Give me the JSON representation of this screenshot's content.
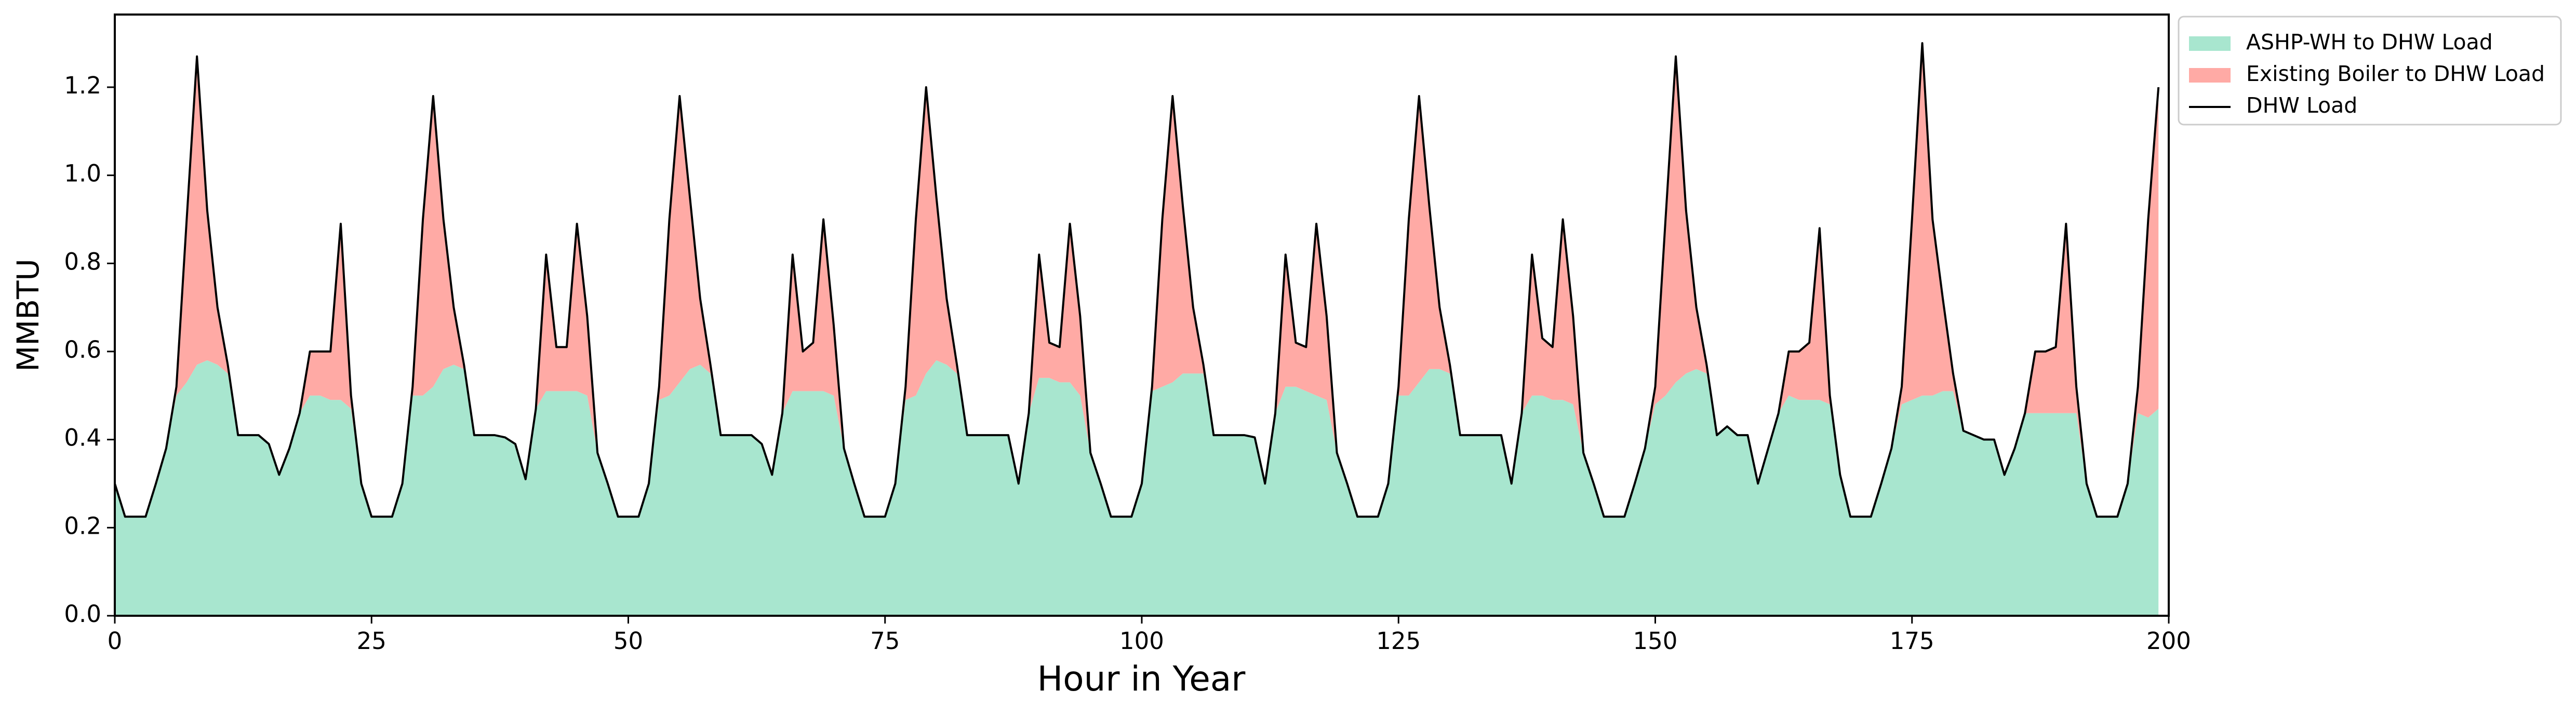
{
  "chart_data": {
    "type": "stacked_area",
    "xlabel": "Hour in Year",
    "ylabel": "MMBTU",
    "x": [
      0,
      1,
      2,
      3,
      4,
      5,
      6,
      7,
      8,
      9,
      10,
      11,
      12,
      13,
      14,
      15,
      16,
      17,
      18,
      19,
      20,
      21,
      22,
      23,
      24,
      25,
      26,
      27,
      28,
      29,
      30,
      31,
      32,
      33,
      34,
      35,
      36,
      37,
      38,
      39,
      40,
      41,
      42,
      43,
      44,
      45,
      46,
      47,
      48,
      49,
      50,
      51,
      52,
      53,
      54,
      55,
      56,
      57,
      58,
      59,
      60,
      61,
      62,
      63,
      64,
      65,
      66,
      67,
      68,
      69,
      70,
      71,
      72,
      73,
      74,
      75,
      76,
      77,
      78,
      79,
      80,
      81,
      82,
      83,
      84,
      85,
      86,
      87,
      88,
      89,
      90,
      91,
      92,
      93,
      94,
      95,
      96,
      97,
      98,
      99,
      100,
      101,
      102,
      103,
      104,
      105,
      106,
      107,
      108,
      109,
      110,
      111,
      112,
      113,
      114,
      115,
      116,
      117,
      118,
      119,
      120,
      121,
      122,
      123,
      124,
      125,
      126,
      127,
      128,
      129,
      130,
      131,
      132,
      133,
      134,
      135,
      136,
      137,
      138,
      139,
      140,
      141,
      142,
      143,
      144,
      145,
      146,
      147,
      148,
      149,
      150,
      151,
      152,
      153,
      154,
      155,
      156,
      157,
      158,
      159,
      160,
      161,
      162,
      163,
      164,
      165,
      166,
      167,
      168,
      169,
      170,
      171,
      172,
      173,
      174,
      175,
      176,
      177,
      178,
      179,
      180,
      181,
      182,
      183,
      184,
      185,
      186,
      187,
      188,
      189,
      190,
      191,
      192,
      193,
      194,
      195,
      196,
      197,
      198,
      199
    ],
    "series": [
      {
        "name": "ASHP-WH to DHW Load",
        "color": "#a8e6cf",
        "kind": "area",
        "values": [
          0.3,
          0.225,
          0.225,
          0.225,
          0.3,
          0.38,
          0.5,
          0.53,
          0.57,
          0.58,
          0.57,
          0.55,
          0.41,
          0.41,
          0.41,
          0.39,
          0.32,
          0.38,
          0.46,
          0.5,
          0.5,
          0.49,
          0.49,
          0.47,
          0.3,
          0.225,
          0.225,
          0.225,
          0.3,
          0.5,
          0.5,
          0.52,
          0.56,
          0.57,
          0.56,
          0.41,
          0.41,
          0.41,
          0.405,
          0.39,
          0.31,
          0.47,
          0.51,
          0.51,
          0.51,
          0.51,
          0.5,
          0.37,
          0.3,
          0.225,
          0.225,
          0.225,
          0.3,
          0.49,
          0.5,
          0.53,
          0.56,
          0.57,
          0.55,
          0.41,
          0.41,
          0.41,
          0.41,
          0.39,
          0.32,
          0.46,
          0.51,
          0.51,
          0.51,
          0.51,
          0.5,
          0.38,
          0.3,
          0.225,
          0.225,
          0.225,
          0.3,
          0.49,
          0.5,
          0.55,
          0.58,
          0.57,
          0.55,
          0.41,
          0.41,
          0.41,
          0.41,
          0.41,
          0.3,
          0.46,
          0.54,
          0.54,
          0.53,
          0.53,
          0.5,
          0.37,
          0.3,
          0.225,
          0.225,
          0.225,
          0.3,
          0.51,
          0.52,
          0.53,
          0.55,
          0.55,
          0.55,
          0.41,
          0.41,
          0.41,
          0.41,
          0.405,
          0.3,
          0.46,
          0.52,
          0.52,
          0.51,
          0.5,
          0.49,
          0.37,
          0.3,
          0.225,
          0.225,
          0.225,
          0.3,
          0.5,
          0.5,
          0.53,
          0.56,
          0.56,
          0.55,
          0.41,
          0.41,
          0.41,
          0.41,
          0.41,
          0.3,
          0.46,
          0.5,
          0.5,
          0.49,
          0.49,
          0.48,
          0.37,
          0.3,
          0.225,
          0.225,
          0.225,
          0.3,
          0.38,
          0.48,
          0.5,
          0.53,
          0.55,
          0.56,
          0.55,
          0.41,
          0.43,
          0.41,
          0.41,
          0.3,
          0.38,
          0.46,
          0.5,
          0.49,
          0.49,
          0.49,
          0.48,
          0.32,
          0.225,
          0.225,
          0.225,
          0.3,
          0.38,
          0.48,
          0.49,
          0.5,
          0.5,
          0.51,
          0.51,
          0.42,
          0.41,
          0.4,
          0.4,
          0.32,
          0.38,
          0.46,
          0.46,
          0.46,
          0.46,
          0.46,
          0.46,
          0.3,
          0.225,
          0.225,
          0.225,
          0.3,
          0.46,
          0.45,
          0.47
        ]
      },
      {
        "name": "Existing Boiler to DHW Load",
        "color": "#ffaaa5",
        "kind": "area",
        "values": [
          0,
          0,
          0,
          0,
          0,
          0,
          0.02,
          0.37,
          0.7,
          0.34,
          0.13,
          0.02,
          0,
          0,
          0,
          0,
          0,
          0,
          0,
          0.1,
          0.1,
          0.11,
          0.4,
          0.03,
          0,
          0,
          0,
          0,
          0,
          0.02,
          0.4,
          0.66,
          0.34,
          0.13,
          0.01,
          0,
          0,
          0,
          0,
          0,
          0,
          0,
          0.31,
          0.1,
          0.1,
          0.38,
          0.18,
          0,
          0,
          0,
          0,
          0,
          0,
          0.03,
          0.4,
          0.65,
          0.39,
          0.15,
          0.02,
          0,
          0,
          0,
          0,
          0,
          0,
          0,
          0.31,
          0.09,
          0.11,
          0.39,
          0.16,
          0,
          0,
          0,
          0,
          0,
          0,
          0.03,
          0.4,
          0.65,
          0.37,
          0.15,
          0.02,
          0,
          0,
          0,
          0,
          0,
          0,
          0,
          0.28,
          0.08,
          0.08,
          0.36,
          0.18,
          0,
          0,
          0,
          0,
          0,
          0,
          0.01,
          0.38,
          0.65,
          0.38,
          0.15,
          0.02,
          0,
          0,
          0,
          0,
          0,
          0,
          0,
          0.3,
          0.1,
          0.1,
          0.39,
          0.19,
          0,
          0,
          0,
          0,
          0,
          0,
          0.02,
          0.4,
          0.65,
          0.37,
          0.14,
          0.02,
          0,
          0,
          0,
          0,
          0,
          0,
          0,
          0.32,
          0.13,
          0.12,
          0.41,
          0.2,
          0,
          0,
          0,
          0,
          0,
          0,
          0,
          0.04,
          0.4,
          0.74,
          0.37,
          0.14,
          0.02,
          0,
          0,
          0,
          0,
          0,
          0,
          0,
          0.1,
          0.11,
          0.13,
          0.39,
          0.02,
          0,
          0,
          0,
          0,
          0,
          0,
          0.04,
          0.41,
          0.8,
          0.4,
          0.21,
          0.04,
          0,
          0,
          0,
          0,
          0,
          0,
          0,
          0.14,
          0.14,
          0.15,
          0.43,
          0.06,
          0,
          0,
          0,
          0,
          0,
          0.06,
          0.45,
          0.73
        ]
      },
      {
        "name": "DHW Load",
        "color": "#000000",
        "kind": "line",
        "values": [
          0.3,
          0.225,
          0.225,
          0.225,
          0.3,
          0.38,
          0.52,
          0.9,
          1.27,
          0.92,
          0.7,
          0.57,
          0.41,
          0.41,
          0.41,
          0.39,
          0.32,
          0.38,
          0.46,
          0.6,
          0.6,
          0.6,
          0.89,
          0.5,
          0.3,
          0.225,
          0.225,
          0.225,
          0.3,
          0.52,
          0.9,
          1.18,
          0.9,
          0.7,
          0.57,
          0.41,
          0.41,
          0.41,
          0.405,
          0.39,
          0.31,
          0.47,
          0.82,
          0.61,
          0.61,
          0.89,
          0.68,
          0.37,
          0.3,
          0.225,
          0.225,
          0.225,
          0.3,
          0.52,
          0.9,
          1.18,
          0.95,
          0.72,
          0.57,
          0.41,
          0.41,
          0.41,
          0.41,
          0.39,
          0.32,
          0.46,
          0.82,
          0.6,
          0.62,
          0.9,
          0.66,
          0.38,
          0.3,
          0.225,
          0.225,
          0.225,
          0.3,
          0.52,
          0.9,
          1.2,
          0.95,
          0.72,
          0.57,
          0.41,
          0.41,
          0.41,
          0.41,
          0.41,
          0.3,
          0.46,
          0.82,
          0.62,
          0.61,
          0.89,
          0.68,
          0.37,
          0.3,
          0.225,
          0.225,
          0.225,
          0.3,
          0.52,
          0.9,
          1.18,
          0.93,
          0.7,
          0.57,
          0.41,
          0.41,
          0.41,
          0.41,
          0.405,
          0.3,
          0.46,
          0.82,
          0.62,
          0.61,
          0.89,
          0.68,
          0.37,
          0.3,
          0.225,
          0.225,
          0.225,
          0.3,
          0.52,
          0.9,
          1.18,
          0.93,
          0.7,
          0.57,
          0.41,
          0.41,
          0.41,
          0.41,
          0.41,
          0.3,
          0.46,
          0.82,
          0.63,
          0.61,
          0.9,
          0.68,
          0.37,
          0.3,
          0.225,
          0.225,
          0.225,
          0.3,
          0.38,
          0.52,
          0.9,
          1.27,
          0.92,
          0.7,
          0.57,
          0.41,
          0.43,
          0.41,
          0.41,
          0.3,
          0.38,
          0.46,
          0.6,
          0.6,
          0.62,
          0.88,
          0.5,
          0.32,
          0.225,
          0.225,
          0.225,
          0.3,
          0.38,
          0.52,
          0.9,
          1.3,
          0.9,
          0.72,
          0.55,
          0.42,
          0.41,
          0.4,
          0.4,
          0.32,
          0.38,
          0.46,
          0.6,
          0.6,
          0.61,
          0.89,
          0.52,
          0.3,
          0.225,
          0.225,
          0.225,
          0.3,
          0.52,
          0.9,
          1.2
        ]
      }
    ],
    "xlim": [
      0,
      200
    ],
    "xticks": [
      0,
      25,
      50,
      75,
      100,
      125,
      150,
      175,
      200
    ],
    "ylim": [
      0,
      1.365
    ],
    "yticks": [
      {
        "value": 0,
        "label": "0.0"
      },
      0.2,
      0.4,
      0.6,
      0.8,
      {
        "value": 1,
        "label": "1.0"
      },
      1.2
    ],
    "legend": "outside upper right"
  }
}
